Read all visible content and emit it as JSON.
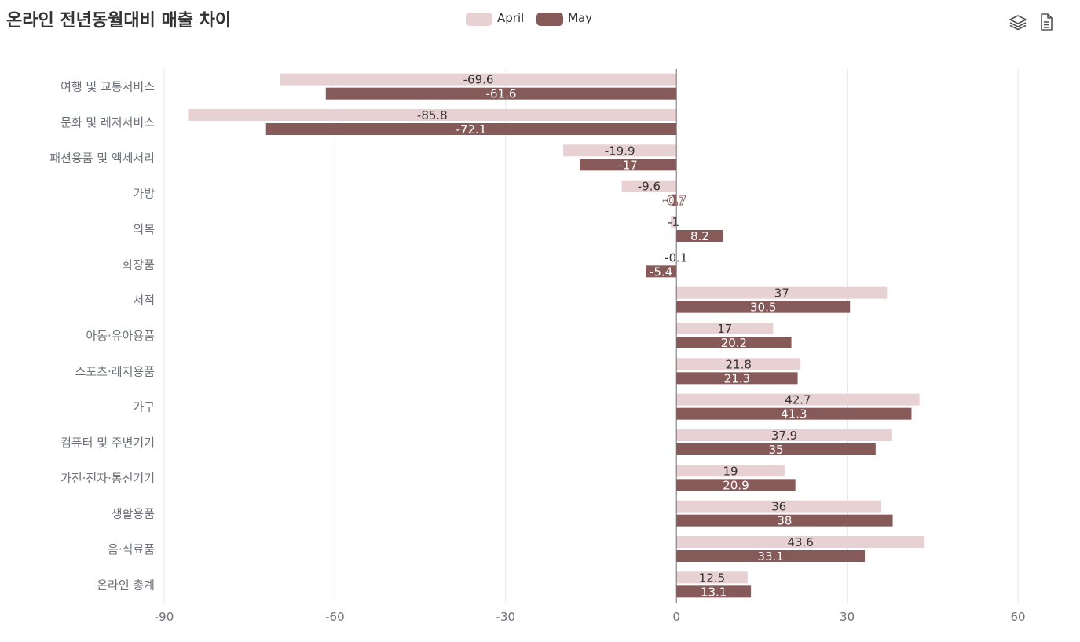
{
  "title": "온라인 전년동월대비 매출 차이",
  "legend": {
    "items": [
      {
        "label": "April",
        "color": "#e8d1d3"
      },
      {
        "label": "May",
        "color": "#875a5a"
      }
    ]
  },
  "toolbox": {
    "icons": [
      "layers-icon",
      "data-view-icon"
    ]
  },
  "chart_data": {
    "type": "bar",
    "orientation": "horizontal",
    "title": "온라인 전년동월대비 매출 차이",
    "categories": [
      "여행 및 교통서비스",
      "문화 및 레저서비스",
      "패션용품 및 액세서리",
      "가방",
      "의복",
      "화장품",
      "서적",
      "아동·유아용품",
      "스포츠·레저용품",
      "가구",
      "컴퓨터 및 주변기기",
      "가전·전자·통신기기",
      "생활용품",
      "음·식료품",
      "온라인 총계"
    ],
    "series": [
      {
        "name": "April",
        "color": "#e8d1d3",
        "values": [
          -69.6,
          -85.8,
          -19.9,
          -9.6,
          -1,
          -0.1,
          37,
          17,
          21.8,
          42.7,
          37.9,
          19,
          36,
          43.6,
          12.5
        ]
      },
      {
        "name": "May",
        "color": "#875a5a",
        "values": [
          -61.6,
          -72.1,
          -17,
          -0.7,
          8.2,
          -5.4,
          30.5,
          20.2,
          21.3,
          41.3,
          35,
          20.9,
          38,
          33.1,
          13.1
        ]
      }
    ],
    "xlim": [
      -90,
      60
    ],
    "xticks": [
      -90,
      -60,
      -30,
      0,
      30,
      60
    ],
    "grid": true,
    "legend_position": "top-center"
  }
}
